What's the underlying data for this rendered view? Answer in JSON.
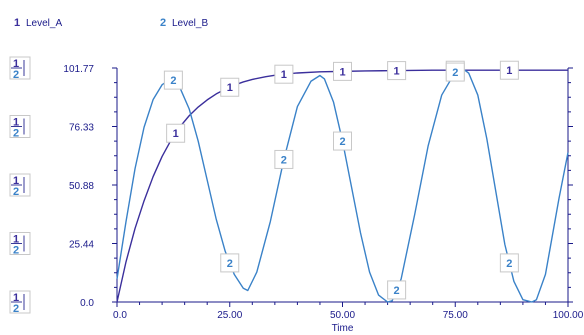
{
  "chart_data": {
    "type": "line",
    "xlabel": "Time",
    "ylabel": "",
    "xlim": [
      0,
      100
    ],
    "ylim": [
      0,
      101.77
    ],
    "x_ticks": [
      "0.0",
      "25.00",
      "50.00",
      "75.00",
      "100.00"
    ],
    "y_ticks": [
      "0.0",
      "25.44",
      "50.88",
      "76.33",
      "101.77"
    ],
    "series": [
      {
        "name": "Level_A",
        "marker": "1",
        "color": "#3b2f9c",
        "x": [
          0,
          2,
          4,
          6,
          8,
          10,
          12,
          14,
          16,
          18,
          20,
          22,
          24,
          26,
          28,
          30,
          33,
          36,
          40,
          45,
          50,
          55,
          60,
          65,
          70,
          75,
          80,
          85,
          90,
          95,
          100
        ],
        "y": [
          0,
          17.5,
          32,
          44,
          54.5,
          63.3,
          70.5,
          76.3,
          81,
          84.8,
          87.9,
          90.5,
          92.5,
          94.3,
          95.7,
          96.8,
          98,
          98.9,
          99.6,
          100.1,
          100.3,
          100.5,
          100.6,
          100.7,
          100.8,
          100.8,
          100.8,
          100.8,
          100.8,
          100.8,
          100.8
        ]
      },
      {
        "name": "Level_B",
        "marker": "2",
        "color": "#3a82c8",
        "x": [
          0,
          2,
          4,
          6,
          8,
          10,
          12,
          13,
          14,
          16,
          18,
          20,
          22,
          24,
          26,
          28,
          29,
          31,
          34,
          37,
          40,
          43,
          45,
          46,
          48,
          50,
          52,
          54,
          56,
          58,
          60,
          61,
          63,
          66,
          69,
          72,
          75,
          77,
          78,
          80,
          82,
          84,
          86,
          88,
          90,
          92,
          93,
          95,
          98,
          100
        ],
        "y": [
          10,
          35,
          58,
          76,
          88,
          94.5,
          97,
          96,
          93,
          84,
          70,
          53,
          36,
          22,
          12,
          6,
          5,
          13,
          35,
          62,
          85,
          96,
          98.5,
          97,
          87,
          70,
          50,
          30,
          13,
          3,
          0,
          0.5,
          10,
          38,
          68,
          90,
          100,
          101,
          99.5,
          90,
          71,
          48,
          25,
          9,
          1,
          0,
          1,
          12,
          45,
          65
        ]
      }
    ],
    "legend": {
      "position": "top-left",
      "entries": [
        {
          "marker": "1",
          "label": "Level_A"
        },
        {
          "marker": "2",
          "label": "Level_B"
        }
      ]
    },
    "marker_points": {
      "Level_A": [
        13,
        25,
        37,
        50,
        62,
        75,
        87
      ],
      "Level_B": [
        12.5,
        25,
        37,
        50,
        62,
        75,
        87
      ]
    },
    "grid": false
  }
}
